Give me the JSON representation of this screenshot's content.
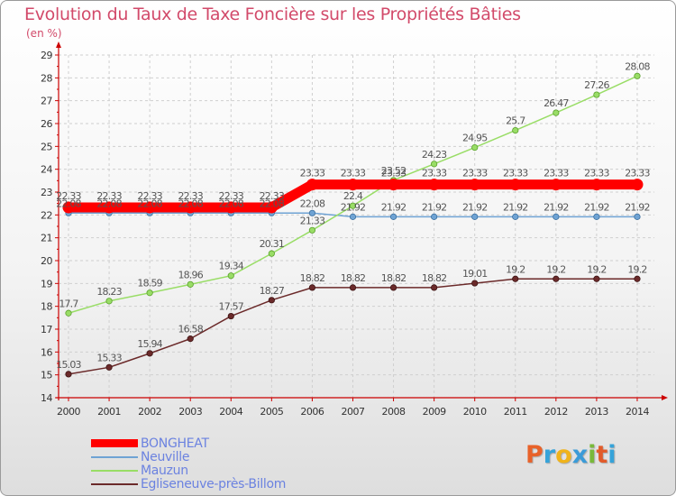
{
  "title": "Evolution du Taux de Taxe Foncière sur les Propriétés Bâties",
  "unit_label": "(en %)",
  "logo": {
    "text": "Proxiti",
    "colors": [
      "#e8622a",
      "#36a3d9",
      "#f0b31a",
      "#3a9bd8",
      "#79b93a",
      "#e25b2a",
      "#36a3d9"
    ]
  },
  "chart_data": {
    "type": "line",
    "title": "Evolution du Taux de Taxe Foncière sur les Propriétés Bâties",
    "ylabel": "(en %)",
    "xlabel": "",
    "x": [
      "2000",
      "2001",
      "2002",
      "2003",
      "2004",
      "2005",
      "2006",
      "2007",
      "2008",
      "2009",
      "2010",
      "2011",
      "2012",
      "2013",
      "2014"
    ],
    "ylim": [
      14,
      29
    ],
    "yticks": [
      "14",
      "15",
      "16",
      "17",
      "18",
      "19",
      "20",
      "21",
      "22",
      "23",
      "24",
      "25",
      "26",
      "27",
      "28",
      "29"
    ],
    "grid": true,
    "legend_position": "bottom-left",
    "series": [
      {
        "name": "BONGHEAT",
        "color": "#ff0000",
        "values": [
          22.33,
          22.33,
          22.33,
          22.33,
          22.33,
          22.33,
          23.33,
          23.33,
          23.33,
          23.33,
          23.33,
          23.33,
          23.33,
          23.33,
          23.33
        ],
        "labels": [
          "22.33",
          "22.33",
          "22.33",
          "22.33",
          "22.33",
          "22.33",
          "23.33",
          "23.33",
          "23.33",
          "23.33",
          "23.33",
          "23.33",
          "23.33",
          "23.33",
          "23.33"
        ]
      },
      {
        "name": "Neuville",
        "color": "#6fa3d4",
        "values": [
          22.08,
          22.08,
          22.08,
          22.08,
          22.08,
          22.08,
          22.08,
          21.92,
          21.92,
          21.92,
          21.92,
          21.92,
          21.92,
          21.92,
          21.92
        ],
        "labels": [
          "22.08",
          "22.08",
          "22.08",
          "22.08",
          "22.08",
          "22.08",
          "22.08",
          "21.92",
          "21.92",
          "21.92",
          "21.92",
          "21.92",
          "21.92",
          "21.92",
          "21.92"
        ]
      },
      {
        "name": "Mauzun",
        "color": "#99dd66",
        "values": [
          17.7,
          18.23,
          18.59,
          18.96,
          19.34,
          20.31,
          21.33,
          22.4,
          23.52,
          24.23,
          24.95,
          25.7,
          26.47,
          27.26,
          28.08
        ],
        "labels": [
          "17.7",
          "18.23",
          "18.59",
          "18.96",
          "19.34",
          "20.31",
          "21.33",
          "22.4",
          "23.52",
          "24.23",
          "24.95",
          "25.7",
          "26.47",
          "27.26",
          "28.08"
        ]
      },
      {
        "name": "Egliseneuve-près-Billom",
        "color": "#6b2a2a",
        "values": [
          15.03,
          15.33,
          15.94,
          16.58,
          17.57,
          18.27,
          18.82,
          18.82,
          18.82,
          18.82,
          19.01,
          19.2,
          19.2,
          19.2,
          19.2
        ],
        "labels": [
          "15.03",
          "15.33",
          "15.94",
          "16.58",
          "17.57",
          "18.27",
          "18.82",
          "18.82",
          "18.82",
          "18.82",
          "19.01",
          "19.2",
          "19.2",
          "19.2",
          "19.2"
        ]
      }
    ]
  }
}
